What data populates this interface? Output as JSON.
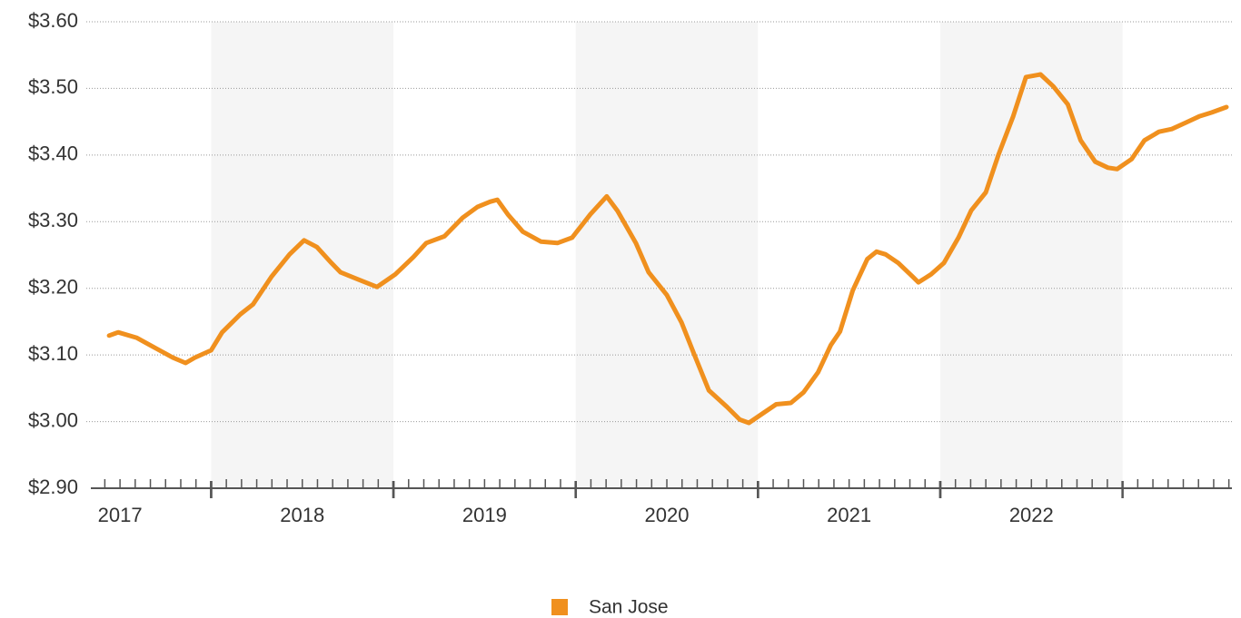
{
  "chart_data": {
    "type": "line",
    "x": [
      2017.44,
      2017.49,
      2017.59,
      2017.69,
      2017.79,
      2017.86,
      2017.91,
      2018.0,
      2018.06,
      2018.16,
      2018.23,
      2018.33,
      2018.43,
      2018.51,
      2018.58,
      2018.66,
      2018.71,
      2018.81,
      2018.91,
      2019.01,
      2019.11,
      2019.18,
      2019.28,
      2019.38,
      2019.46,
      2019.53,
      2019.57,
      2019.63,
      2019.71,
      2019.81,
      2019.9,
      2019.98,
      2020.08,
      2020.17,
      2020.23,
      2020.33,
      2020.4,
      2020.5,
      2020.58,
      2020.65,
      2020.73,
      2020.83,
      2020.9,
      2020.95,
      2021.03,
      2021.1,
      2021.18,
      2021.25,
      2021.33,
      2021.4,
      2021.45,
      2021.52,
      2021.6,
      2021.65,
      2021.7,
      2021.77,
      2021.85,
      2021.88,
      2021.95,
      2022.02,
      2022.1,
      2022.17,
      2022.25,
      2022.32,
      2022.4,
      2022.47,
      2022.55,
      2022.62,
      2022.7,
      2022.77,
      2022.85,
      2022.92,
      2022.97,
      2023.05,
      2023.12,
      2023.2,
      2023.27,
      2023.35,
      2023.42,
      2023.49,
      2023.57
    ],
    "series": [
      {
        "name": "San Jose",
        "color": "#f0901e",
        "values": [
          3.129,
          3.134,
          3.126,
          3.111,
          3.096,
          3.088,
          3.096,
          3.107,
          3.134,
          3.161,
          3.176,
          3.217,
          3.251,
          3.272,
          3.262,
          3.238,
          3.224,
          3.213,
          3.202,
          3.221,
          3.247,
          3.268,
          3.278,
          3.306,
          3.322,
          3.33,
          3.333,
          3.31,
          3.285,
          3.27,
          3.268,
          3.276,
          3.311,
          3.338,
          3.316,
          3.268,
          3.224,
          3.19,
          3.149,
          3.101,
          3.047,
          3.022,
          3.003,
          2.998,
          3.013,
          3.026,
          3.028,
          3.044,
          3.074,
          3.115,
          3.135,
          3.197,
          3.244,
          3.255,
          3.251,
          3.238,
          3.217,
          3.209,
          3.221,
          3.238,
          3.276,
          3.317,
          3.344,
          3.401,
          3.458,
          3.517,
          3.521,
          3.503,
          3.476,
          3.422,
          3.39,
          3.381,
          3.379,
          3.394,
          3.422,
          3.435,
          3.439,
          3.449,
          3.458,
          3.464,
          3.472
        ]
      }
    ],
    "xlim": [
      2017.34,
      2023.6
    ],
    "xticks": [
      {
        "value": 2017,
        "label": "2017"
      },
      {
        "value": 2018,
        "label": "2018"
      },
      {
        "value": 2019,
        "label": "2019"
      },
      {
        "value": 2020,
        "label": "2020"
      },
      {
        "value": 2021,
        "label": "2021"
      },
      {
        "value": 2022,
        "label": "2022"
      }
    ],
    "ylim": [
      2.9,
      3.6
    ],
    "yticks": [
      {
        "value": 2.9,
        "label": "$2.90"
      },
      {
        "value": 3.0,
        "label": "$3.00"
      },
      {
        "value": 3.1,
        "label": "$3.10"
      },
      {
        "value": 3.2,
        "label": "$3.20"
      },
      {
        "value": 3.3,
        "label": "$3.30"
      },
      {
        "value": 3.4,
        "label": "$3.40"
      },
      {
        "value": 3.5,
        "label": "$3.50"
      },
      {
        "value": 3.6,
        "label": "$3.60"
      }
    ],
    "grid": true,
    "legend": "bottom"
  }
}
